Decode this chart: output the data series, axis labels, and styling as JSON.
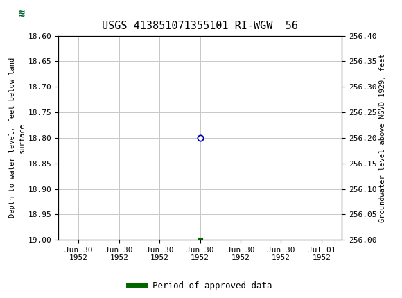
{
  "title": "USGS 413851071355101 RI-WGW  56",
  "header_bg_color": "#006633",
  "plot_bg_color": "#ffffff",
  "grid_color": "#c8c8c8",
  "left_ylabel": "Depth to water level, feet below land\nsurface",
  "right_ylabel": "Groundwater level above NGVD 1929, feet",
  "ylim_left": [
    18.6,
    19.0
  ],
  "ylim_right": [
    256.0,
    256.4
  ],
  "yticks_left": [
    18.6,
    18.65,
    18.7,
    18.75,
    18.8,
    18.85,
    18.9,
    18.95,
    19.0
  ],
  "yticks_right": [
    256.4,
    256.35,
    256.3,
    256.25,
    256.2,
    256.15,
    256.1,
    256.05,
    256.0
  ],
  "open_circle_value": 18.8,
  "filled_square_value": 19.0,
  "open_circle_color": "#ffffff",
  "open_circle_edgecolor": "#0000aa",
  "filled_square_color": "#006600",
  "legend_label": "Period of approved data",
  "legend_color": "#006600",
  "n_xticks": 7,
  "tick_labels": [
    "Jun 30\n1952",
    "Jun 30\n1952",
    "Jun 30\n1952",
    "Jun 30\n1952",
    "Jun 30\n1952",
    "Jun 30\n1952",
    "Jul 01\n1952"
  ],
  "font_size_ticks": 8,
  "font_size_title": 11,
  "font_size_ylabel": 7.5,
  "font_size_legend": 9
}
